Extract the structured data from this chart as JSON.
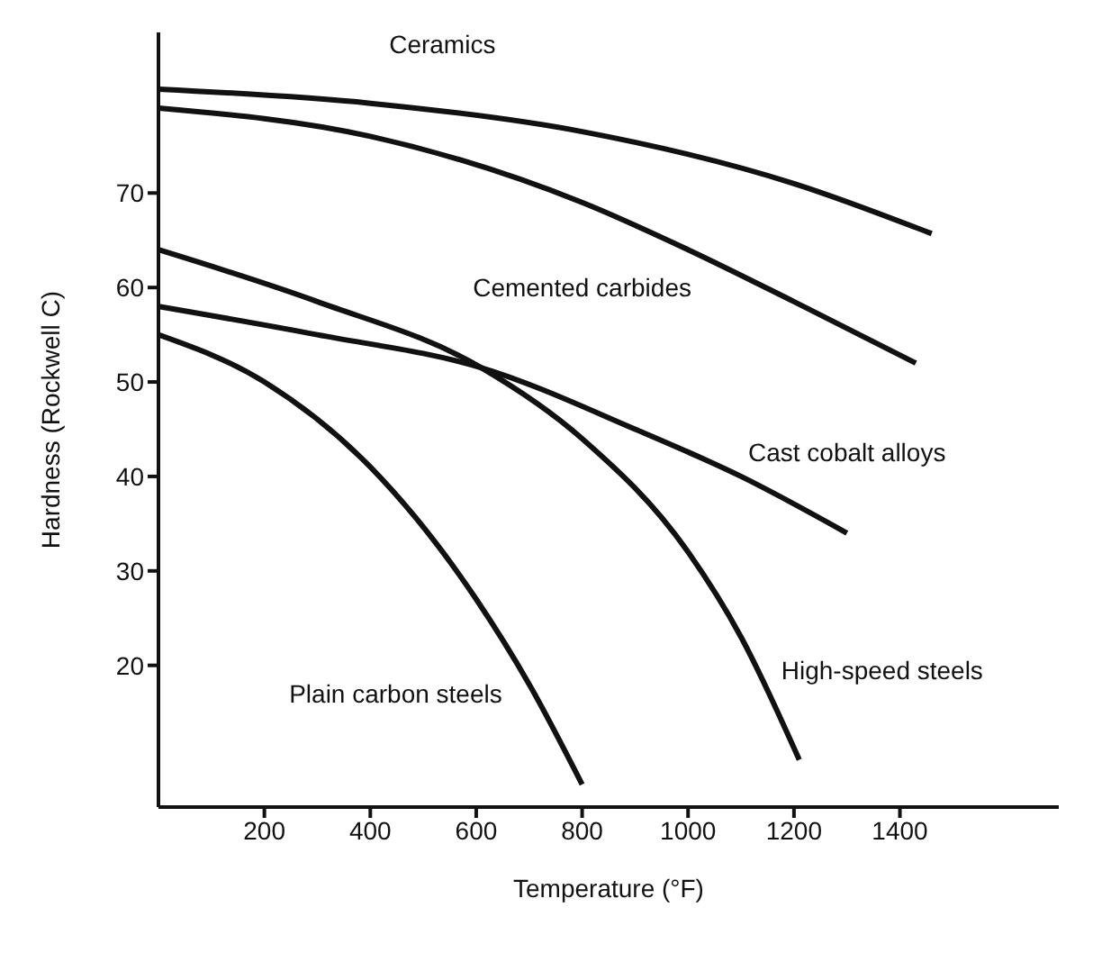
{
  "chart_data": {
    "type": "line",
    "xlabel": "Temperature (°F)",
    "ylabel": "Hardness (Rockwell C)",
    "xlim": [
      0,
      1700
    ],
    "ylim": [
      5,
      87
    ],
    "xticks": [
      200,
      400,
      600,
      800,
      1000,
      1200,
      1400
    ],
    "yticks": [
      20,
      30,
      40,
      50,
      60,
      70
    ],
    "marker": "none",
    "line_style": "solid",
    "series": [
      {
        "name": "Ceramics",
        "color": "#111111",
        "x": [
          0,
          400,
          800,
          1200,
          1460
        ],
        "values": [
          81,
          79.5,
          76.5,
          71,
          65.7
        ]
      },
      {
        "name": "Cemented carbides",
        "color": "#111111",
        "x": [
          0,
          400,
          800,
          1000,
          1200,
          1430
        ],
        "values": [
          79,
          76,
          69,
          64,
          58.5,
          52
        ]
      },
      {
        "name": "Cast cobalt alloys",
        "color": "#111111",
        "x": [
          0,
          300,
          610,
          900,
          1100,
          1300
        ],
        "values": [
          58,
          55,
          51.5,
          45,
          40,
          34
        ]
      },
      {
        "name": "High-speed steels",
        "color": "#111111",
        "x": [
          0,
          300,
          610,
          800,
          1000,
          1100,
          1210
        ],
        "values": [
          64,
          58.5,
          51.5,
          44,
          32,
          23,
          10
        ]
      },
      {
        "name": "Plain carbon steels",
        "color": "#111111",
        "x": [
          0,
          200,
          400,
          600,
          700,
          800
        ],
        "values": [
          55,
          50,
          41,
          27,
          18,
          7.4
        ]
      }
    ]
  }
}
